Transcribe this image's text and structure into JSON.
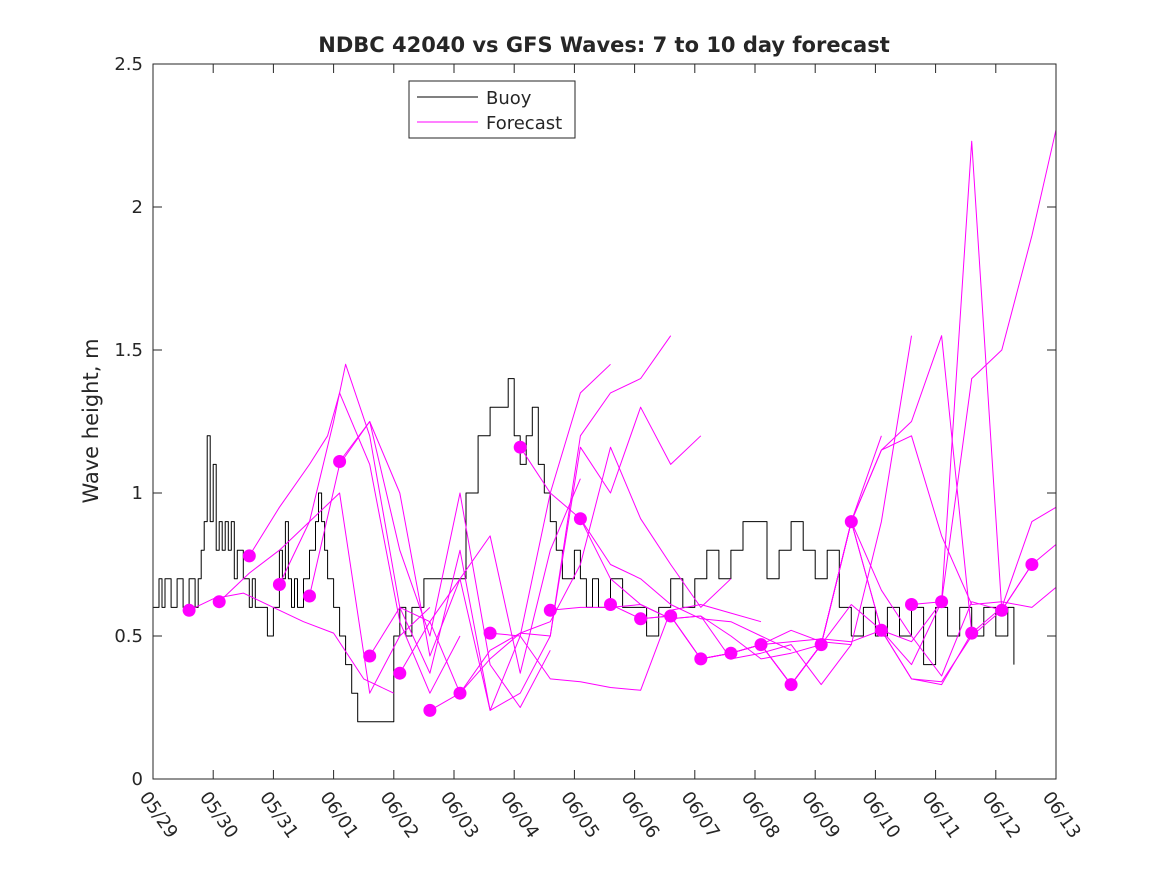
{
  "chart_data": {
    "type": "line",
    "title": "NDBC 42040 vs GFS Waves: 7 to 10 day forecast",
    "xlabel": "",
    "ylabel": "Wave height, m",
    "xlim": [
      0,
      15
    ],
    "ylim": [
      0,
      2.5
    ],
    "x_ticks": [
      0,
      1,
      2,
      3,
      4,
      5,
      6,
      7,
      8,
      9,
      10,
      11,
      12,
      13,
      14,
      15
    ],
    "x_tick_labels": [
      "05/29",
      "05/30",
      "05/31",
      "06/01",
      "06/02",
      "06/03",
      "06/04",
      "06/05",
      "06/06",
      "06/07",
      "06/08",
      "06/09",
      "06/10",
      "06/11",
      "06/12",
      "06/13"
    ],
    "y_ticks": [
      0,
      0.5,
      1,
      1.5,
      2,
      2.5
    ],
    "y_tick_labels": [
      "0",
      "0.5",
      "1",
      "1.5",
      "2",
      "2.5"
    ],
    "legend": {
      "position": "top-left",
      "entries": [
        {
          "label": "Buoy",
          "color": "#000000"
        },
        {
          "label": "Forecast",
          "color": "#ff00ff"
        }
      ]
    },
    "colors": {
      "buoy": "#000000",
      "forecast": "#ff00ff",
      "axes": "#262626"
    },
    "series": [
      {
        "name": "Buoy",
        "type": "step",
        "x": [
          0,
          0.1,
          0.15,
          0.2,
          0.3,
          0.4,
          0.5,
          0.6,
          0.7,
          0.75,
          0.8,
          0.85,
          0.9,
          0.95,
          1.0,
          1.05,
          1.1,
          1.15,
          1.2,
          1.25,
          1.3,
          1.35,
          1.4,
          1.5,
          1.6,
          1.65,
          1.7,
          1.8,
          1.9,
          2.0,
          2.1,
          2.15,
          2.2,
          2.25,
          2.3,
          2.35,
          2.4,
          2.5,
          2.6,
          2.7,
          2.75,
          2.8,
          2.85,
          2.9,
          3.0,
          3.1,
          3.2,
          3.3,
          3.4,
          3.5,
          3.6,
          3.7,
          3.8,
          3.9,
          4.0,
          4.1,
          4.2,
          4.3,
          4.5,
          5.0,
          5.2,
          5.4,
          5.6,
          5.9,
          6.0,
          6.1,
          6.2,
          6.3,
          6.4,
          6.5,
          6.6,
          6.7,
          6.8,
          6.9,
          7.0,
          7.1,
          7.2,
          7.3,
          7.4,
          7.5,
          7.6,
          7.8,
          8.0,
          8.2,
          8.4,
          8.6,
          8.8,
          9.0,
          9.2,
          9.4,
          9.6,
          9.8,
          10.0,
          10.2,
          10.4,
          10.6,
          10.8,
          11.0,
          11.2,
          11.4,
          11.6,
          11.8,
          12.0,
          12.2,
          12.4,
          12.6,
          12.8,
          13.0,
          13.2,
          13.4,
          13.6,
          13.8,
          14.0,
          14.2,
          14.3
        ],
        "y": [
          0.6,
          0.7,
          0.6,
          0.7,
          0.6,
          0.7,
          0.6,
          0.7,
          0.6,
          0.7,
          0.8,
          0.9,
          1.2,
          0.9,
          1.1,
          0.8,
          0.9,
          0.8,
          0.9,
          0.8,
          0.9,
          0.7,
          0.8,
          0.7,
          0.6,
          0.7,
          0.6,
          0.6,
          0.5,
          0.6,
          0.8,
          0.7,
          0.9,
          0.7,
          0.6,
          0.7,
          0.6,
          0.7,
          0.8,
          0.9,
          1.0,
          0.9,
          0.8,
          0.7,
          0.6,
          0.5,
          0.4,
          0.3,
          0.2,
          0.2,
          0.2,
          0.2,
          0.2,
          0.2,
          0.5,
          0.6,
          0.5,
          0.6,
          0.7,
          0.7,
          1.0,
          1.2,
          1.3,
          1.4,
          1.2,
          1.1,
          1.2,
          1.3,
          1.1,
          1.0,
          0.9,
          0.8,
          0.7,
          0.7,
          0.8,
          0.7,
          0.6,
          0.7,
          0.6,
          0.6,
          0.7,
          0.6,
          0.6,
          0.5,
          0.6,
          0.7,
          0.6,
          0.7,
          0.8,
          0.7,
          0.8,
          0.9,
          0.9,
          0.7,
          0.8,
          0.9,
          0.8,
          0.7,
          0.8,
          0.6,
          0.5,
          0.6,
          0.5,
          0.6,
          0.5,
          0.6,
          0.4,
          0.6,
          0.5,
          0.6,
          0.5,
          0.6,
          0.5,
          0.6,
          0.4
        ]
      },
      {
        "name": "Forecast",
        "x": [
          0.6,
          1.0,
          1.5,
          2.0,
          2.5,
          3.0,
          3.5,
          4.0
        ],
        "y": [
          0.59,
          0.63,
          0.65,
          0.6,
          0.55,
          0.51,
          0.35,
          0.3
        ]
      },
      {
        "name": "Forecast",
        "x": [
          1.1,
          1.6,
          2.1,
          2.6,
          3.1,
          3.6,
          4.1,
          4.6
        ],
        "y": [
          0.62,
          0.72,
          0.8,
          0.9,
          1.0,
          0.3,
          0.5,
          0.6
        ]
      },
      {
        "name": "Forecast",
        "x": [
          1.6,
          2.1,
          2.6,
          2.9,
          3.1,
          3.6,
          4.1,
          4.6,
          5.1
        ],
        "y": [
          0.78,
          0.95,
          1.1,
          1.2,
          1.35,
          1.1,
          0.55,
          0.3,
          0.5
        ]
      },
      {
        "name": "Forecast",
        "x": [
          2.1,
          2.6,
          3.0,
          3.2,
          3.6,
          4.1,
          4.6,
          5.1
        ],
        "y": [
          0.68,
          0.9,
          1.25,
          1.45,
          1.2,
          0.6,
          0.55,
          0.3
        ]
      },
      {
        "name": "Forecast",
        "x": [
          2.6,
          3.1,
          3.6,
          4.1,
          4.6,
          5.1,
          5.6,
          6.1,
          6.6
        ],
        "y": [
          0.64,
          1.1,
          1.25,
          0.8,
          0.5,
          1.0,
          0.4,
          0.25,
          0.45
        ]
      },
      {
        "name": "Forecast",
        "x": [
          3.1,
          3.6,
          4.1,
          4.6,
          5.1,
          5.6,
          6.1,
          6.6,
          7.1
        ],
        "y": [
          1.11,
          1.25,
          1.0,
          0.43,
          0.7,
          0.85,
          0.37,
          0.8,
          1.05
        ]
      },
      {
        "name": "Forecast",
        "x": [
          3.6,
          4.1,
          4.6,
          5.1,
          5.6,
          6.1,
          6.6,
          7.1,
          7.6
        ],
        "y": [
          0.43,
          0.6,
          0.37,
          0.8,
          0.24,
          0.5,
          1.0,
          1.35,
          1.45
        ]
      },
      {
        "name": "Forecast",
        "x": [
          4.1,
          4.6,
          5.1,
          5.6,
          6.1,
          6.6,
          7.1,
          7.6,
          8.1,
          8.6
        ],
        "y": [
          0.37,
          0.55,
          0.7,
          0.24,
          0.3,
          0.5,
          1.2,
          1.35,
          1.4,
          1.55
        ]
      },
      {
        "name": "Forecast",
        "x": [
          4.6,
          5.1,
          5.6,
          6.1,
          6.6,
          7.1,
          7.6,
          8.1,
          8.6,
          9.1
        ],
        "y": [
          0.24,
          0.3,
          0.45,
          0.51,
          0.5,
          1.16,
          1.0,
          1.3,
          1.1,
          1.2
        ]
      },
      {
        "name": "Forecast",
        "x": [
          5.1,
          5.6,
          6.1,
          6.6,
          7.1,
          7.6,
          8.1,
          8.6,
          9.1,
          9.6
        ],
        "y": [
          0.3,
          0.42,
          0.51,
          0.55,
          0.75,
          1.16,
          0.91,
          0.75,
          0.6,
          0.7
        ]
      },
      {
        "name": "Forecast",
        "x": [
          5.6,
          6.1,
          6.6,
          7.1,
          7.6,
          8.1,
          8.6,
          9.1,
          9.6,
          10.1
        ],
        "y": [
          0.51,
          0.5,
          0.35,
          0.34,
          0.32,
          0.31,
          0.59,
          0.61,
          0.58,
          0.55
        ]
      },
      {
        "name": "Forecast",
        "x": [
          6.1,
          6.6,
          7.1,
          7.6,
          8.1,
          8.6,
          9.1,
          9.6,
          10.1,
          10.6
        ],
        "y": [
          1.16,
          1.0,
          0.91,
          0.75,
          0.7,
          0.61,
          0.56,
          0.55,
          0.5,
          0.45
        ]
      },
      {
        "name": "Forecast",
        "x": [
          6.6,
          7.1,
          7.6,
          8.1,
          8.6,
          9.1,
          9.6,
          10.1,
          10.6,
          11.1
        ],
        "y": [
          0.59,
          0.6,
          0.6,
          0.61,
          0.56,
          0.57,
          0.5,
          0.42,
          0.44,
          0.47
        ]
      },
      {
        "name": "Forecast",
        "x": [
          7.1,
          7.6,
          8.1,
          8.6,
          9.1,
          9.6,
          10.1,
          10.6,
          11.1,
          11.6
        ],
        "y": [
          0.91,
          0.7,
          0.61,
          0.56,
          0.57,
          0.42,
          0.44,
          0.47,
          0.33,
          0.47
        ]
      },
      {
        "name": "Forecast",
        "x": [
          7.6,
          8.1,
          8.6,
          9.1,
          9.6,
          10.1,
          10.6,
          11.1,
          11.6,
          12.1
        ],
        "y": [
          0.61,
          0.56,
          0.57,
          0.42,
          0.44,
          0.47,
          0.33,
          0.47,
          0.9,
          1.2
        ]
      },
      {
        "name": "Forecast",
        "x": [
          8.1,
          8.6,
          9.1,
          9.6,
          10.1,
          10.6,
          11.1,
          11.6,
          12.1,
          12.6
        ],
        "y": [
          0.56,
          0.57,
          0.42,
          0.44,
          0.47,
          0.52,
          0.48,
          0.47,
          0.9,
          1.55
        ]
      },
      {
        "name": "Forecast",
        "x": [
          8.6,
          9.1,
          9.6,
          10.1,
          10.6,
          11.1,
          11.6,
          12.1,
          12.6,
          13.1
        ],
        "y": [
          0.57,
          0.42,
          0.44,
          0.47,
          0.48,
          0.49,
          0.48,
          0.52,
          0.4,
          0.62
        ]
      },
      {
        "name": "Forecast",
        "x": [
          9.1,
          9.6,
          10.1,
          10.6,
          11.1,
          11.6,
          12.1,
          12.6,
          13.1,
          13.6
        ],
        "y": [
          0.42,
          0.44,
          0.47,
          0.33,
          0.47,
          0.61,
          0.52,
          0.35,
          0.33,
          0.51
        ]
      },
      {
        "name": "Forecast",
        "x": [
          9.6,
          10.1,
          10.6,
          11.1,
          11.6,
          12.1,
          12.6,
          13.1,
          13.6,
          14.1
        ],
        "y": [
          0.44,
          0.47,
          0.33,
          0.47,
          0.9,
          0.66,
          0.5,
          0.36,
          0.62,
          0.59
        ]
      },
      {
        "name": "Forecast",
        "x": [
          10.1,
          10.6,
          11.1,
          11.6,
          12.1,
          12.6,
          13.1,
          13.6,
          14.1,
          14.6
        ],
        "y": [
          0.47,
          0.33,
          0.47,
          0.9,
          0.52,
          0.35,
          0.34,
          0.5,
          0.59,
          0.75
        ]
      },
      {
        "name": "Forecast",
        "x": [
          10.6,
          11.1,
          11.6,
          12.1,
          12.6,
          13.1,
          13.6,
          14.1,
          14.6,
          15.0
        ],
        "y": [
          0.33,
          0.47,
          0.9,
          1.15,
          1.2,
          0.85,
          0.61,
          0.62,
          0.6,
          0.67
        ]
      },
      {
        "name": "Forecast",
        "x": [
          11.1,
          11.6,
          12.1,
          12.6,
          13.1,
          13.6,
          14.1,
          14.6,
          15.0
        ],
        "y": [
          0.47,
          0.9,
          1.15,
          1.25,
          1.55,
          0.51,
          0.6,
          0.9,
          0.95
        ]
      },
      {
        "name": "Forecast",
        "x": [
          11.6,
          12.1,
          12.6,
          13.1,
          13.6,
          14.1,
          14.6,
          15.0
        ],
        "y": [
          0.9,
          0.52,
          0.48,
          0.62,
          2.23,
          0.59,
          0.75,
          0.82
        ]
      },
      {
        "name": "Forecast",
        "x": [
          12.6,
          13.1,
          13.6,
          14.1,
          14.6,
          15.0
        ],
        "y": [
          0.61,
          0.62,
          1.4,
          1.5,
          1.9,
          2.27
        ]
      }
    ],
    "forecast_start_points": {
      "x": [
        0.6,
        1.1,
        1.6,
        2.1,
        2.6,
        3.1,
        3.6,
        4.1,
        4.6,
        5.1,
        5.6,
        6.1,
        6.6,
        7.1,
        7.6,
        8.1,
        8.6,
        9.1,
        9.6,
        10.1,
        10.6,
        11.1,
        11.6,
        12.1,
        12.6,
        13.1,
        13.6,
        14.1,
        14.6
      ],
      "y": [
        0.59,
        0.62,
        0.78,
        0.68,
        0.64,
        1.11,
        0.43,
        0.37,
        0.24,
        0.3,
        0.51,
        1.16,
        0.59,
        0.91,
        0.61,
        0.56,
        0.57,
        0.42,
        0.44,
        0.47,
        0.33,
        0.47,
        0.9,
        0.52,
        0.61,
        0.62,
        0.51,
        0.59,
        0.75
      ]
    }
  }
}
